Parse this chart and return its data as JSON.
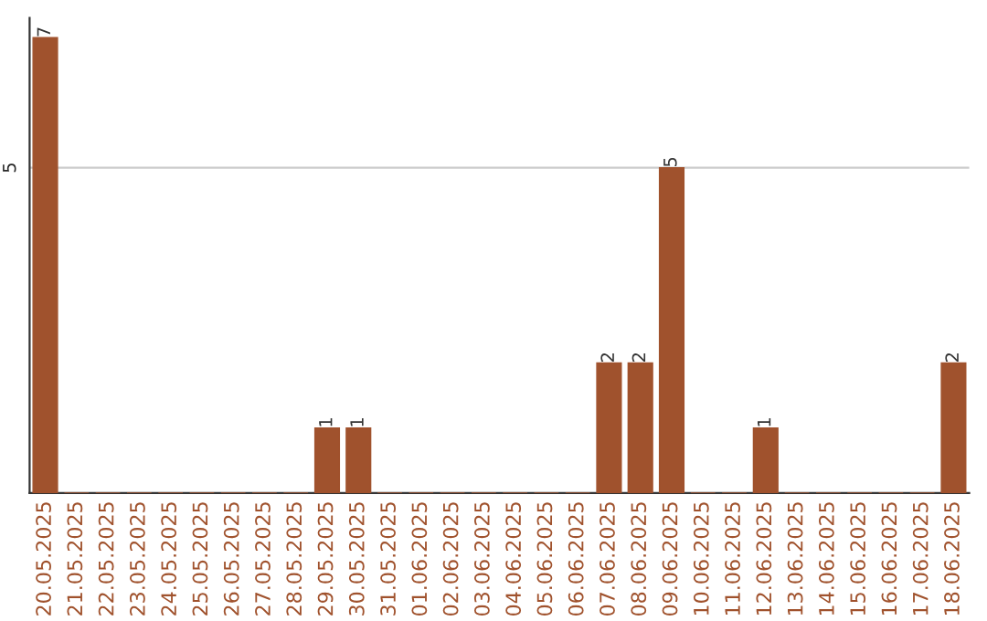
{
  "chart_data": {
    "type": "bar",
    "categories": [
      "20.05.2025",
      "21.05.2025",
      "22.05.2025",
      "23.05.2025",
      "24.05.2025",
      "25.05.2025",
      "26.05.2025",
      "27.05.2025",
      "28.05.2025",
      "29.05.2025",
      "30.05.2025",
      "31.05.2025",
      "01.06.2025",
      "02.06.2025",
      "03.06.2025",
      "04.06.2025",
      "05.06.2025",
      "06.06.2025",
      "07.06.2025",
      "08.06.2025",
      "09.06.2025",
      "10.06.2025",
      "11.06.2025",
      "12.06.2025",
      "13.06.2025",
      "14.06.2025",
      "15.06.2025",
      "16.06.2025",
      "17.06.2025",
      "18.06.2025"
    ],
    "values": [
      7,
      0,
      0,
      0,
      0,
      0,
      0,
      0,
      0,
      1,
      1,
      0,
      0,
      0,
      0,
      0,
      0,
      0,
      2,
      2,
      5,
      0,
      0,
      1,
      0,
      0,
      0,
      0,
      0,
      2
    ],
    "value_labels": [
      "7",
      null,
      null,
      null,
      null,
      null,
      null,
      null,
      null,
      "1",
      "1",
      null,
      null,
      null,
      null,
      null,
      null,
      null,
      "2",
      "2",
      "5",
      null,
      null,
      "1",
      null,
      null,
      null,
      null,
      null,
      "2"
    ],
    "color": "#a0522d",
    "ylim": [
      0,
      7.3
    ],
    "yticks": [
      5
    ],
    "grid": "y"
  }
}
